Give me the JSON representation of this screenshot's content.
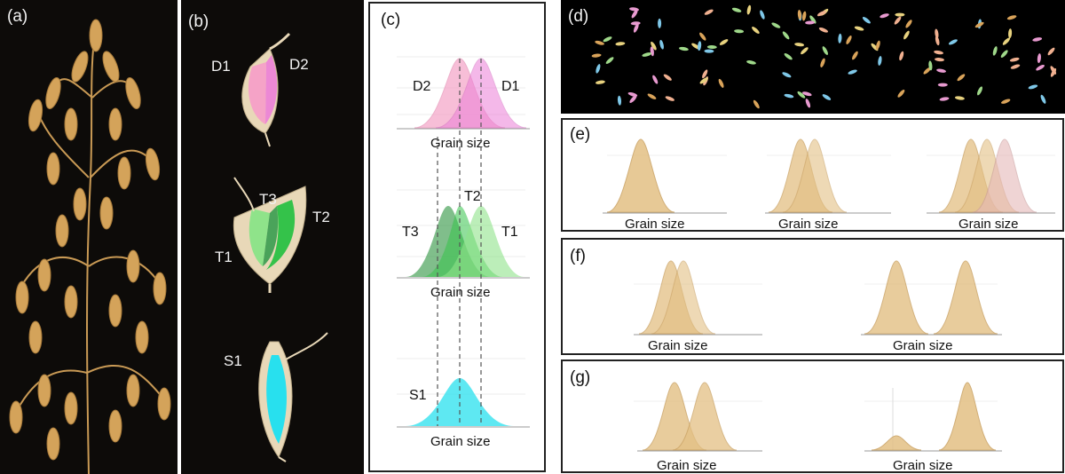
{
  "panels": {
    "a": {
      "label": "(a)"
    },
    "b": {
      "label": "(b)",
      "labels": {
        "d1": "D1",
        "d2": "D2",
        "t1": "T1",
        "t2": "T2",
        "t3": "T3",
        "s1": "S1"
      }
    },
    "c": {
      "label": "(c)",
      "xlabel": "Grain size",
      "row1": {
        "left": "D2",
        "right": "D1"
      },
      "row2": {
        "left": "T3",
        "mid": "T2",
        "right": "T1"
      },
      "row3": {
        "left": "S1"
      }
    },
    "d": {
      "label": "(d)"
    },
    "e": {
      "label": "(e)",
      "xlabel": "Grain size"
    },
    "f": {
      "label": "(f)",
      "xlabel": "Grain size"
    },
    "g": {
      "label": "(g)",
      "xlabel": "Grain size"
    }
  },
  "colors": {
    "oat": "#d4a35a",
    "pink": "#f5a3c7",
    "magenta": "#ec7fd8",
    "dark_green": "#4aa35a",
    "mid_green": "#34c24a",
    "light_green": "#8fe38a",
    "cyan": "#28e0ee",
    "dist_fill": "#e3c084",
    "dist_stroke": "#c9a060"
  }
}
